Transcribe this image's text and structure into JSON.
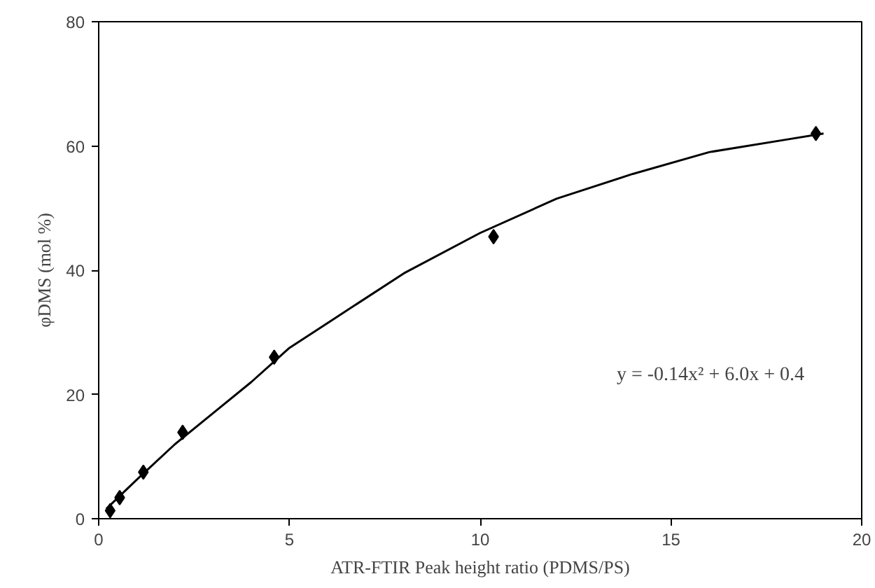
{
  "chart_data": {
    "type": "scatter",
    "xlabel": "ATR-FTIR Peak height ratio (PDMS/PS)",
    "ylabel": "φDMS (mol %)",
    "xlim": [
      0,
      20
    ],
    "ylim": [
      0,
      80
    ],
    "xticks": [
      0,
      5,
      10,
      15,
      20
    ],
    "yticks": [
      0,
      20,
      40,
      60,
      80
    ],
    "grid": false,
    "series": [
      {
        "marker": "diamond",
        "color": "#000000",
        "x": [
          0.3,
          0.55,
          1.17,
          2.2,
          4.6,
          10.35,
          18.8
        ],
        "values": [
          1.3,
          3.4,
          7.5,
          13.9,
          26,
          45.4,
          62
        ]
      },
      {
        "type": "line",
        "color": "#000000",
        "x": [
          0.2,
          1,
          2,
          3,
          4,
          5,
          6,
          8,
          10,
          12,
          14,
          16,
          18,
          19
        ],
        "values": [
          1.6,
          6.3,
          12,
          17,
          22,
          27.5,
          31.5,
          39.5,
          46,
          51.5,
          55.5,
          59,
          61,
          62
        ]
      }
    ],
    "annotations": [
      "y = -0.14x² + 6.0x + 0.4"
    ]
  }
}
